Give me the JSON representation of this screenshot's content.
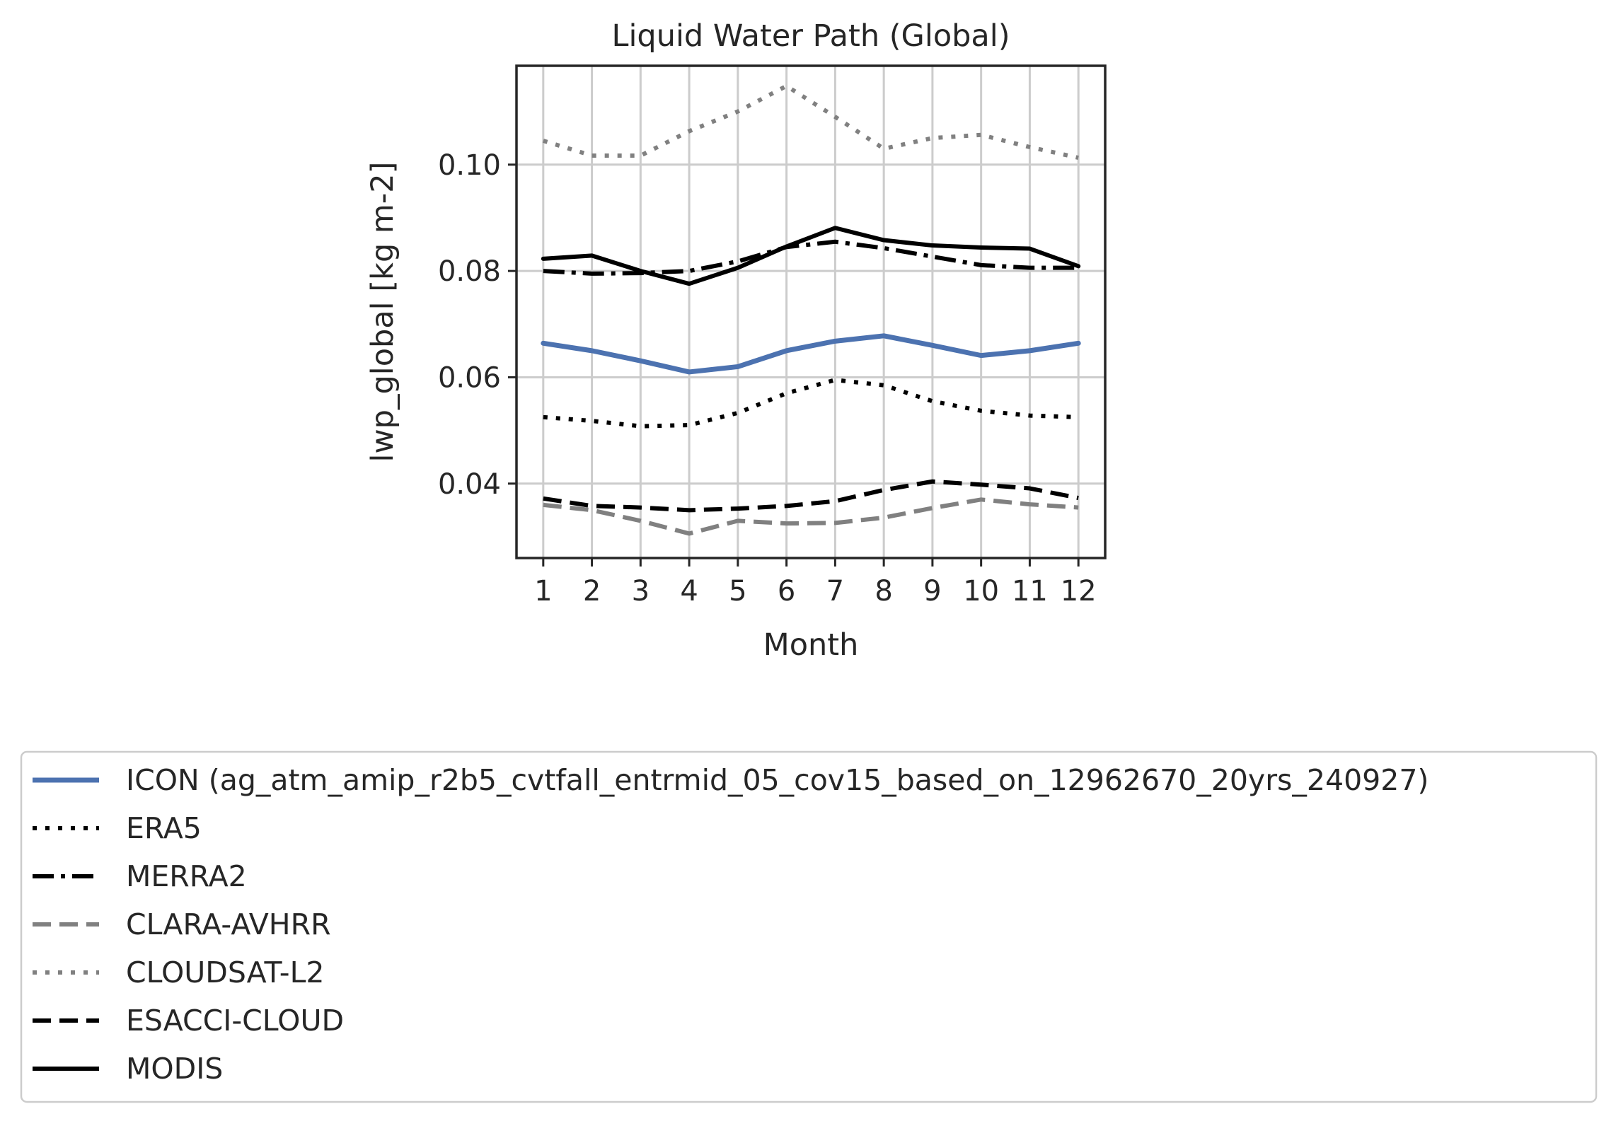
{
  "chart_data": {
    "type": "line",
    "title": "Liquid Water Path (Global)",
    "xlabel": "Month",
    "ylabel": "lwp_global [kg m-2]",
    "x": [
      1,
      2,
      3,
      4,
      5,
      6,
      7,
      8,
      9,
      10,
      11,
      12
    ],
    "xticks": [
      "1",
      "2",
      "3",
      "4",
      "5",
      "6",
      "7",
      "8",
      "9",
      "10",
      "11",
      "12"
    ],
    "yticks": [
      "0.04",
      "0.06",
      "0.08",
      "0.10"
    ],
    "ylim": [
      0.026,
      0.1186
    ],
    "xlim": [
      0.45,
      12.55
    ],
    "grid": true,
    "legend_position": "below",
    "series": [
      {
        "name": "ICON (ag_atm_amip_r2b5_cvtfall_entrmid_05_cov15_based_on_12962670_20yrs_240927)",
        "color": "#4c72b0",
        "style": "solid",
        "values": [
          0.0664,
          0.065,
          0.0631,
          0.061,
          0.062,
          0.065,
          0.0668,
          0.0678,
          0.066,
          0.0641,
          0.065,
          0.0664
        ]
      },
      {
        "name": "ERA5",
        "color": "#000000",
        "style": "dotted",
        "values": [
          0.0525,
          0.0518,
          0.0508,
          0.051,
          0.0533,
          0.057,
          0.0595,
          0.0585,
          0.0555,
          0.0537,
          0.0528,
          0.0525
        ]
      },
      {
        "name": "MERRA2",
        "color": "#000000",
        "style": "dashdot",
        "values": [
          0.08,
          0.0795,
          0.0796,
          0.08,
          0.0818,
          0.0845,
          0.0855,
          0.0843,
          0.0827,
          0.0811,
          0.0806,
          0.0806
        ]
      },
      {
        "name": "CLARA-AVHRR",
        "color": "#808080",
        "style": "dashed",
        "values": [
          0.036,
          0.035,
          0.033,
          0.0306,
          0.033,
          0.0325,
          0.0326,
          0.0336,
          0.0354,
          0.037,
          0.0361,
          0.0355
        ]
      },
      {
        "name": "CLOUDSAT-L2",
        "color": "#808080",
        "style": "dotted",
        "values": [
          0.1045,
          0.1017,
          0.1017,
          0.1063,
          0.11,
          0.1148,
          0.109,
          0.103,
          0.105,
          0.1056,
          0.1033,
          0.1013
        ]
      },
      {
        "name": "ESACCI-CLOUD",
        "color": "#000000",
        "style": "dashed",
        "values": [
          0.0372,
          0.0358,
          0.0355,
          0.035,
          0.0353,
          0.0358,
          0.0367,
          0.0388,
          0.0404,
          0.0398,
          0.0391,
          0.0373
        ]
      },
      {
        "name": "MODIS",
        "color": "#000000",
        "style": "solid",
        "values": [
          0.0823,
          0.0829,
          0.08,
          0.0776,
          0.0806,
          0.0846,
          0.0881,
          0.0858,
          0.0848,
          0.0844,
          0.0842,
          0.0809
        ]
      }
    ]
  }
}
